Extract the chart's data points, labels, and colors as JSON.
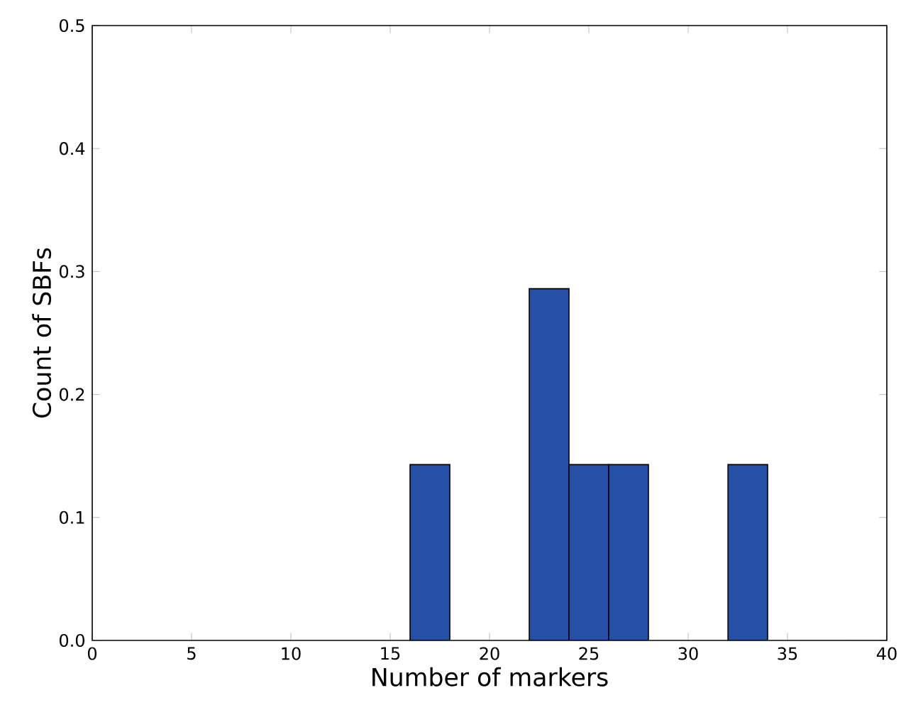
{
  "chart_data": {
    "type": "histogram",
    "xlabel": "Number of markers",
    "ylabel": "Count of SBFs",
    "bins": [
      0,
      2,
      4,
      6,
      8,
      10,
      12,
      14,
      16,
      18,
      20,
      22,
      24,
      26,
      28,
      30,
      32,
      34,
      36,
      38
    ],
    "values": [
      0,
      0,
      0,
      0,
      0,
      0,
      0,
      0,
      0.143,
      0,
      0,
      0.286,
      0.143,
      0.143,
      0,
      0,
      0.143,
      0,
      0
    ],
    "color": "#2650a6",
    "xlim": [
      0,
      40
    ],
    "ylim": [
      0,
      0.5
    ],
    "xticks": [
      0,
      5,
      10,
      15,
      20,
      25,
      30,
      35,
      40
    ],
    "yticks": [
      {
        "value": 0,
        "label": "0.0"
      },
      {
        "value": 0.1,
        "label": "0.1"
      },
      {
        "value": 0.2,
        "label": "0.2"
      },
      {
        "value": 0.3,
        "label": "0.3"
      },
      {
        "value": 0.4,
        "label": "0.4"
      },
      {
        "value": 0.5,
        "label": "0.5"
      }
    ],
    "grid": false
  }
}
